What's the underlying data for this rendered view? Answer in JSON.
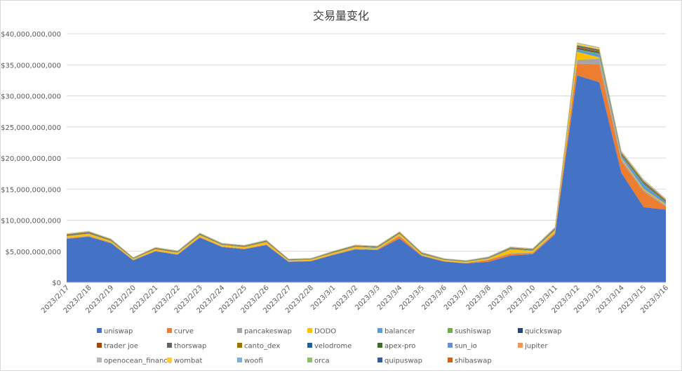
{
  "chart_data": {
    "type": "area",
    "stacked": true,
    "title": "交易量变化",
    "xlabel": "",
    "ylabel": "",
    "ylim": [
      0,
      40000000000
    ],
    "yticks": [
      0,
      5000000000,
      10000000000,
      15000000000,
      20000000000,
      25000000000,
      30000000000,
      35000000000,
      40000000000
    ],
    "ytick_labels": [
      "$0",
      "$5,000,000,000",
      "$10,000,000,000",
      "$15,000,000,000",
      "$20,000,000,000",
      "$25,000,000,000",
      "$30,000,000,000",
      "$35,000,000,000",
      "$40,000,000,000"
    ],
    "grid": true,
    "legend_position": "bottom",
    "categories": [
      "2023/2/17",
      "2023/2/18",
      "2023/2/19",
      "2023/2/20",
      "2023/2/21",
      "2023/2/22",
      "2023/2/23",
      "2023/2/24",
      "2023/2/25",
      "2023/2/26",
      "2023/2/27",
      "2023/2/28",
      "2023/3/1",
      "2023/3/2",
      "2023/3/3",
      "2023/3/4",
      "2023/3/5",
      "2023/3/6",
      "2023/3/7",
      "2023/3/8",
      "2023/3/9",
      "2023/3/10",
      "2023/3/11",
      "2023/3/12",
      "2023/3/13",
      "2023/3/14",
      "2023/3/15",
      "2023/3/16"
    ],
    "series": [
      {
        "name": "uniswap",
        "color": "#4472c4",
        "values": [
          7000000000,
          7350000000,
          6300000000,
          3550000000,
          5000000000,
          4450000000,
          7200000000,
          5700000000,
          5350000000,
          6000000000,
          3300000000,
          3400000000,
          4400000000,
          5300000000,
          5200000000,
          7050000000,
          4250000000,
          3350000000,
          3050000000,
          3300000000,
          4300000000,
          4550000000,
          7700000000,
          33300000000,
          32200000000,
          17600000000,
          12100000000,
          11700000000
        ]
      },
      {
        "name": "curve",
        "color": "#ed7d31",
        "values": [
          80000000,
          80000000,
          70000000,
          40000000,
          60000000,
          50000000,
          60000000,
          50000000,
          50000000,
          80000000,
          40000000,
          40000000,
          60000000,
          60000000,
          60000000,
          400000000,
          60000000,
          50000000,
          40000000,
          300000000,
          300000000,
          150000000,
          200000000,
          1900000000,
          2900000000,
          1900000000,
          2500000000,
          500000000
        ]
      },
      {
        "name": "pancakeswap",
        "color": "#a5a5a5",
        "values": [
          80000000,
          80000000,
          70000000,
          50000000,
          60000000,
          60000000,
          70000000,
          60000000,
          60000000,
          70000000,
          50000000,
          50000000,
          60000000,
          70000000,
          70000000,
          80000000,
          60000000,
          50000000,
          50000000,
          60000000,
          100000000,
          100000000,
          150000000,
          600000000,
          900000000,
          400000000,
          300000000,
          200000000
        ]
      },
      {
        "name": "DODO",
        "color": "#ffc000",
        "values": [
          250000000,
          300000000,
          200000000,
          150000000,
          200000000,
          200000000,
          250000000,
          200000000,
          200000000,
          300000000,
          150000000,
          150000000,
          200000000,
          250000000,
          200000000,
          250000000,
          150000000,
          150000000,
          150000000,
          150000000,
          600000000,
          250000000,
          300000000,
          1300000000,
          200000000,
          150000000,
          150000000,
          150000000
        ]
      },
      {
        "name": "balancer",
        "color": "#5b9bd5",
        "values": [
          40000000,
          40000000,
          35000000,
          25000000,
          30000000,
          30000000,
          40000000,
          35000000,
          30000000,
          35000000,
          25000000,
          25000000,
          30000000,
          35000000,
          35000000,
          40000000,
          30000000,
          30000000,
          25000000,
          30000000,
          60000000,
          50000000,
          80000000,
          300000000,
          500000000,
          300000000,
          700000000,
          300000000
        ]
      },
      {
        "name": "sushiswap",
        "color": "#70ad47",
        "values": [
          40000000,
          40000000,
          35000000,
          25000000,
          30000000,
          30000000,
          35000000,
          30000000,
          30000000,
          35000000,
          25000000,
          25000000,
          30000000,
          35000000,
          35000000,
          40000000,
          30000000,
          25000000,
          25000000,
          30000000,
          40000000,
          40000000,
          50000000,
          150000000,
          150000000,
          100000000,
          100000000,
          80000000
        ]
      },
      {
        "name": "quickswap",
        "color": "#264478",
        "values": [
          30000000,
          30000000,
          25000000,
          20000000,
          25000000,
          25000000,
          30000000,
          25000000,
          25000000,
          30000000,
          20000000,
          20000000,
          25000000,
          30000000,
          30000000,
          30000000,
          25000000,
          20000000,
          20000000,
          25000000,
          30000000,
          30000000,
          40000000,
          100000000,
          100000000,
          80000000,
          80000000,
          60000000
        ]
      },
      {
        "name": "trader joe",
        "color": "#9e480e",
        "values": [
          60000000,
          60000000,
          50000000,
          30000000,
          40000000,
          40000000,
          50000000,
          40000000,
          40000000,
          50000000,
          30000000,
          30000000,
          40000000,
          40000000,
          40000000,
          50000000,
          40000000,
          30000000,
          30000000,
          40000000,
          50000000,
          50000000,
          60000000,
          150000000,
          150000000,
          100000000,
          100000000,
          80000000
        ]
      },
      {
        "name": "thorswap",
        "color": "#636363",
        "values": [
          20000000,
          20000000,
          15000000,
          10000000,
          15000000,
          15000000,
          20000000,
          15000000,
          15000000,
          20000000,
          10000000,
          10000000,
          15000000,
          15000000,
          15000000,
          20000000,
          15000000,
          10000000,
          10000000,
          15000000,
          20000000,
          20000000,
          25000000,
          50000000,
          50000000,
          40000000,
          40000000,
          30000000
        ]
      },
      {
        "name": "canto_dex",
        "color": "#997300",
        "values": [
          80000000,
          80000000,
          70000000,
          40000000,
          60000000,
          50000000,
          60000000,
          50000000,
          50000000,
          60000000,
          40000000,
          40000000,
          50000000,
          60000000,
          60000000,
          60000000,
          50000000,
          40000000,
          40000000,
          50000000,
          60000000,
          60000000,
          70000000,
          100000000,
          100000000,
          80000000,
          80000000,
          60000000
        ]
      },
      {
        "name": "velodrome",
        "color": "#255e91",
        "values": [
          20000000,
          20000000,
          15000000,
          10000000,
          15000000,
          15000000,
          20000000,
          15000000,
          15000000,
          20000000,
          10000000,
          10000000,
          15000000,
          15000000,
          15000000,
          20000000,
          15000000,
          10000000,
          10000000,
          15000000,
          20000000,
          20000000,
          25000000,
          80000000,
          80000000,
          50000000,
          50000000,
          40000000
        ]
      },
      {
        "name": "apex-pro",
        "color": "#43682b",
        "values": [
          40000000,
          40000000,
          35000000,
          25000000,
          30000000,
          30000000,
          35000000,
          30000000,
          30000000,
          35000000,
          25000000,
          25000000,
          30000000,
          35000000,
          35000000,
          40000000,
          30000000,
          25000000,
          25000000,
          30000000,
          40000000,
          40000000,
          50000000,
          100000000,
          100000000,
          80000000,
          80000000,
          60000000
        ]
      },
      {
        "name": "sun_io",
        "color": "#698ed0",
        "values": [
          10000000,
          10000000,
          10000000,
          5000000,
          10000000,
          10000000,
          10000000,
          10000000,
          10000000,
          10000000,
          5000000,
          5000000,
          10000000,
          10000000,
          10000000,
          10000000,
          10000000,
          5000000,
          5000000,
          10000000,
          10000000,
          10000000,
          10000000,
          20000000,
          20000000,
          15000000,
          15000000,
          10000000
        ]
      },
      {
        "name": "jupiter",
        "color": "#f1975a",
        "values": [
          20000000,
          20000000,
          15000000,
          10000000,
          15000000,
          15000000,
          20000000,
          15000000,
          15000000,
          20000000,
          10000000,
          10000000,
          15000000,
          15000000,
          15000000,
          20000000,
          15000000,
          10000000,
          10000000,
          15000000,
          20000000,
          20000000,
          25000000,
          50000000,
          50000000,
          40000000,
          40000000,
          30000000
        ]
      },
      {
        "name": "openocean_finance",
        "color": "#b7b7b7",
        "values": [
          20000000,
          20000000,
          15000000,
          10000000,
          15000000,
          15000000,
          20000000,
          15000000,
          15000000,
          20000000,
          10000000,
          10000000,
          15000000,
          15000000,
          15000000,
          20000000,
          15000000,
          10000000,
          10000000,
          15000000,
          20000000,
          20000000,
          25000000,
          50000000,
          50000000,
          40000000,
          40000000,
          30000000
        ]
      },
      {
        "name": "wombat",
        "color": "#ffcd33",
        "values": [
          30000000,
          30000000,
          25000000,
          20000000,
          25000000,
          25000000,
          30000000,
          25000000,
          25000000,
          30000000,
          20000000,
          20000000,
          25000000,
          30000000,
          30000000,
          30000000,
          25000000,
          20000000,
          20000000,
          25000000,
          30000000,
          30000000,
          40000000,
          200000000,
          150000000,
          100000000,
          100000000,
          60000000
        ]
      },
      {
        "name": "woofi",
        "color": "#7cafdd",
        "values": [
          20000000,
          20000000,
          15000000,
          10000000,
          15000000,
          15000000,
          20000000,
          15000000,
          15000000,
          20000000,
          10000000,
          10000000,
          15000000,
          15000000,
          15000000,
          20000000,
          15000000,
          10000000,
          10000000,
          15000000,
          20000000,
          20000000,
          25000000,
          50000000,
          50000000,
          40000000,
          40000000,
          30000000
        ]
      },
      {
        "name": "orca",
        "color": "#8cc168",
        "values": [
          20000000,
          20000000,
          15000000,
          10000000,
          15000000,
          15000000,
          20000000,
          15000000,
          15000000,
          20000000,
          10000000,
          10000000,
          15000000,
          15000000,
          15000000,
          20000000,
          15000000,
          10000000,
          10000000,
          15000000,
          20000000,
          20000000,
          25000000,
          50000000,
          50000000,
          40000000,
          40000000,
          30000000
        ]
      },
      {
        "name": "quipuswap",
        "color": "#335aa1",
        "values": [
          5000000,
          5000000,
          5000000,
          5000000,
          5000000,
          5000000,
          5000000,
          5000000,
          5000000,
          5000000,
          5000000,
          5000000,
          5000000,
          5000000,
          5000000,
          5000000,
          5000000,
          5000000,
          5000000,
          5000000,
          5000000,
          5000000,
          5000000,
          10000000,
          10000000,
          10000000,
          10000000,
          5000000
        ]
      },
      {
        "name": "shibaswap",
        "color": "#d26012",
        "values": [
          10000000,
          10000000,
          10000000,
          5000000,
          10000000,
          10000000,
          10000000,
          10000000,
          10000000,
          10000000,
          5000000,
          5000000,
          10000000,
          10000000,
          10000000,
          10000000,
          10000000,
          5000000,
          5000000,
          10000000,
          10000000,
          10000000,
          10000000,
          20000000,
          20000000,
          15000000,
          15000000,
          10000000
        ]
      }
    ]
  }
}
